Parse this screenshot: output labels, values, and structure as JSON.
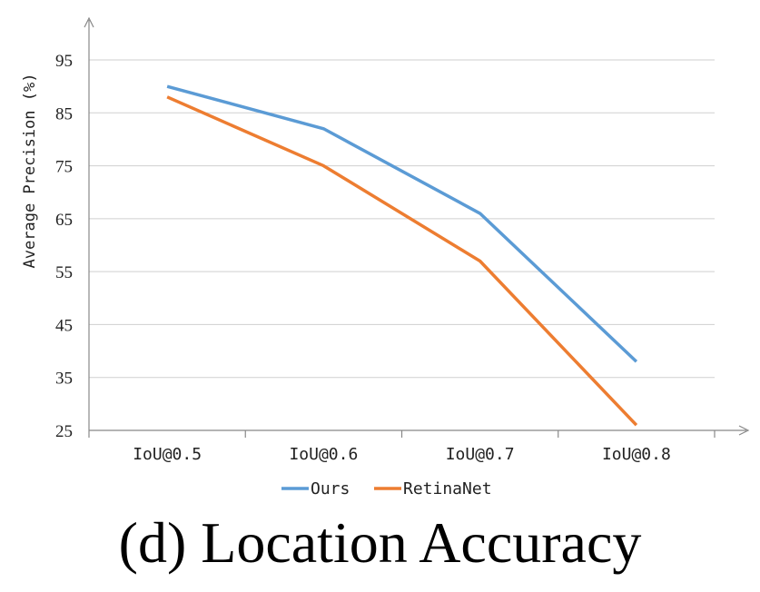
{
  "caption": "(d) Location Accuracy",
  "chart_data": {
    "type": "line",
    "title": "",
    "xlabel": "",
    "ylabel": "Average Precision (%)",
    "categories": [
      "IoU@0.5",
      "IoU@0.6",
      "IoU@0.7",
      "IoU@0.8"
    ],
    "ylim": [
      25,
      95
    ],
    "yticks": [
      25,
      35,
      45,
      55,
      65,
      75,
      85,
      95
    ],
    "grid": "horizontal",
    "legend": "bottom",
    "series": [
      {
        "name": "Ours",
        "color": "#5B9BD5",
        "values": [
          90,
          82,
          66,
          38
        ]
      },
      {
        "name": "RetinaNet",
        "color": "#ED7D31",
        "values": [
          88,
          75,
          57,
          26
        ]
      }
    ]
  }
}
